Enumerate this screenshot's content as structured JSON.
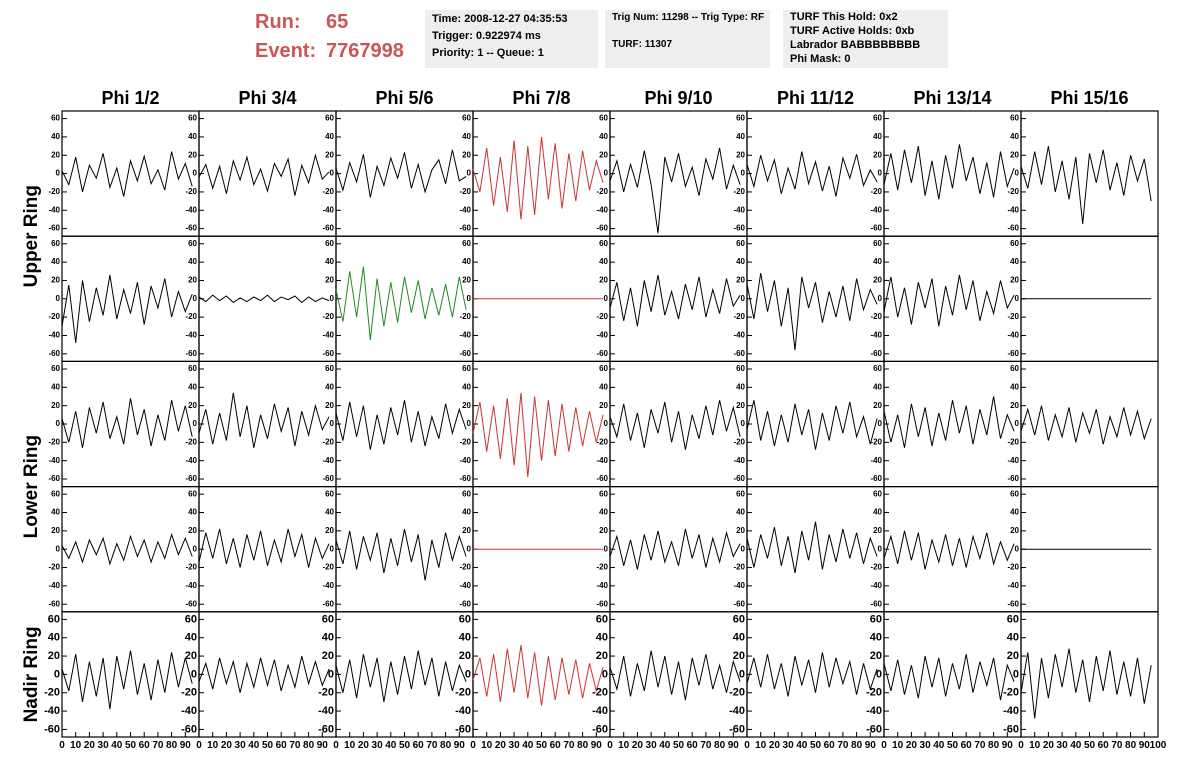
{
  "header": {
    "run_label": "Run:",
    "run": "65",
    "event_label": "Event:",
    "event": "7767998"
  },
  "info": [
    [
      "Time: 2008-12-27 04:35:53",
      "Trigger: 0.922974 ms",
      "Priority: 1 -- Queue: 1"
    ],
    [
      "Trig Num: 11298 -- Trig Type: RF",
      "TURF: 11307"
    ],
    [
      "TURF This Hold: 0x2",
      "TURF Active Holds: 0xb",
      "Labrador BABBBBBBBB",
      "Phi Mask: 0"
    ]
  ],
  "info_colors": [
    "#000000",
    "#000000",
    "#000000",
    "#000000",
    "#000000",
    "#000000",
    "#ee00ee",
    "#000000"
  ],
  "columns": [
    "Phi 1/2",
    "Phi 3/4",
    "Phi 5/6",
    "Phi 7/8",
    "Phi 9/10",
    "Phi 11/12",
    "Phi 13/14",
    "Phi 15/16"
  ],
  "ring_labels": [
    "Upper Ring",
    "Lower Ring",
    "Nadir Ring"
  ],
  "axes": {
    "ylim": [
      -65,
      65
    ],
    "yticks": [
      -60,
      -40,
      -20,
      0,
      20,
      40,
      60
    ],
    "xlim": [
      0,
      100
    ],
    "xticks": [
      0,
      10,
      20,
      30,
      40,
      50,
      60,
      70,
      80,
      90,
      100
    ],
    "x": [
      0,
      5,
      10,
      15,
      20,
      25,
      30,
      35,
      40,
      45,
      50,
      55,
      60,
      65,
      70,
      75,
      80,
      85,
      90,
      95
    ]
  },
  "panels": [
    [
      {
        "color": "#000000",
        "values": [
          3,
          -12,
          18,
          -20,
          9,
          -5,
          22,
          -15,
          6,
          -25,
          14,
          -8,
          19,
          -11,
          4,
          -18,
          24,
          -6,
          11,
          -14
        ]
      },
      {
        "color": "#000000",
        "values": [
          -4,
          10,
          -16,
          8,
          -22,
          14,
          -7,
          18,
          -12,
          5,
          -19,
          11,
          -3,
          16,
          -24,
          9,
          -10,
          20,
          -6,
          2
        ]
      },
      {
        "color": "#000000",
        "values": [
          6,
          -18,
          12,
          -9,
          21,
          -26,
          8,
          -13,
          17,
          -5,
          23,
          -16,
          10,
          -20,
          4,
          15,
          -11,
          26,
          -8,
          -3
        ]
      },
      {
        "color": "#cc3333",
        "values": [
          5,
          -20,
          28,
          -35,
          18,
          -42,
          36,
          -50,
          30,
          -45,
          40,
          -28,
          33,
          -38,
          22,
          -30,
          25,
          -18,
          14,
          -10
        ]
      },
      {
        "color": "#000000",
        "values": [
          -8,
          14,
          -20,
          10,
          -15,
          25,
          -12,
          -65,
          18,
          -9,
          22,
          -14,
          7,
          -24,
          16,
          -6,
          28,
          -17,
          9,
          -12
        ]
      },
      {
        "color": "#000000",
        "values": [
          10,
          -14,
          20,
          -8,
          15,
          -22,
          6,
          -17,
          24,
          -11,
          13,
          -19,
          8,
          -25,
          17,
          -5,
          21,
          -13,
          4,
          -9
        ]
      },
      {
        "color": "#000000",
        "values": [
          -12,
          22,
          -18,
          26,
          -10,
          30,
          -24,
          14,
          -28,
          20,
          -16,
          32,
          -8,
          18,
          -22,
          12,
          -26,
          24,
          -14,
          6
        ]
      },
      {
        "color": "#000000",
        "values": [
          8,
          -16,
          24,
          -12,
          30,
          -20,
          14,
          -28,
          18,
          -55,
          22,
          -10,
          26,
          -18,
          12,
          -24,
          20,
          -8,
          16,
          -30
        ]
      }
    ],
    [
      {
        "color": "#000000",
        "values": [
          -30,
          15,
          -48,
          20,
          -25,
          12,
          -18,
          26,
          -22,
          10,
          -16,
          18,
          -28,
          14,
          -10,
          22,
          -20,
          8,
          -14,
          5
        ]
      },
      {
        "color": "#000000",
        "values": [
          2,
          -3,
          4,
          -2,
          3,
          -4,
          1,
          -3,
          2,
          -2,
          4,
          -3,
          2,
          -1,
          3,
          -4,
          2,
          -3,
          1,
          -2
        ]
      },
      {
        "color": "#228822",
        "values": [
          10,
          -25,
          30,
          -20,
          35,
          -45,
          22,
          -30,
          18,
          -26,
          24,
          -15,
          20,
          -22,
          12,
          -18,
          16,
          -20,
          24,
          -12
        ]
      },
      {
        "color": "#cc3333",
        "values": [
          0,
          0,
          0,
          0,
          0,
          0,
          0,
          0,
          0,
          0,
          0,
          0,
          0,
          0,
          0,
          0,
          0,
          0,
          0,
          0
        ]
      },
      {
        "color": "#000000",
        "values": [
          -10,
          18,
          -24,
          12,
          -30,
          20,
          -14,
          26,
          -18,
          8,
          -22,
          16,
          -12,
          24,
          -20,
          10,
          -16,
          22,
          -8,
          4
        ]
      },
      {
        "color": "#000000",
        "values": [
          16,
          -22,
          28,
          -14,
          20,
          -30,
          12,
          -56,
          24,
          -10,
          18,
          -26,
          8,
          -20,
          14,
          -24,
          22,
          -12,
          10,
          -6
        ]
      },
      {
        "color": "#000000",
        "values": [
          -14,
          24,
          -20,
          12,
          -28,
          18,
          -10,
          22,
          -30,
          14,
          -18,
          26,
          -12,
          20,
          -24,
          8,
          -16,
          20,
          -10,
          4
        ]
      },
      {
        "color": "#000000",
        "values": [
          0,
          0,
          0,
          0,
          0,
          0,
          0,
          0,
          0,
          0,
          0,
          0,
          0,
          0,
          0,
          0,
          0,
          0,
          0,
          0
        ]
      }
    ],
    [
      {
        "color": "#000000",
        "values": [
          6,
          -20,
          14,
          -26,
          18,
          -10,
          24,
          -16,
          8,
          -22,
          28,
          -12,
          16,
          -24,
          10,
          -18,
          26,
          -8,
          20,
          -14
        ]
      },
      {
        "color": "#000000",
        "values": [
          -10,
          16,
          -22,
          12,
          -18,
          34,
          -14,
          20,
          -26,
          10,
          -16,
          22,
          -8,
          18,
          -24,
          14,
          -12,
          20,
          -6,
          8
        ]
      },
      {
        "color": "#000000",
        "values": [
          12,
          -18,
          24,
          -14,
          20,
          -28,
          10,
          -22,
          18,
          -12,
          26,
          -20,
          14,
          -24,
          8,
          -16,
          22,
          -10,
          16,
          -6
        ]
      },
      {
        "color": "#cc3333",
        "values": [
          -10,
          24,
          -30,
          20,
          -38,
          28,
          -45,
          34,
          -58,
          30,
          -40,
          26,
          -35,
          22,
          -30,
          18,
          -24,
          14,
          -20,
          10
        ]
      },
      {
        "color": "#000000",
        "values": [
          8,
          -14,
          22,
          -18,
          12,
          -26,
          16,
          -10,
          24,
          -20,
          14,
          -28,
          10,
          -16,
          20,
          -12,
          26,
          -8,
          18,
          -14
        ]
      },
      {
        "color": "#000000",
        "values": [
          -6,
          26,
          -18,
          14,
          -24,
          10,
          -20,
          22,
          -12,
          16,
          -28,
          12,
          -18,
          20,
          -10,
          24,
          -14,
          8,
          -22,
          6
        ]
      },
      {
        "color": "#000000",
        "values": [
          14,
          -20,
          10,
          -26,
          22,
          -14,
          18,
          -24,
          12,
          -18,
          26,
          -10,
          20,
          -22,
          16,
          -12,
          30,
          -16,
          10,
          -8
        ]
      },
      {
        "color": "#000000",
        "values": [
          -8,
          16,
          -12,
          20,
          -18,
          10,
          -14,
          18,
          -20,
          12,
          -10,
          16,
          -22,
          8,
          -14,
          18,
          -12,
          14,
          -16,
          6
        ]
      }
    ],
    [
      {
        "color": "#000000",
        "values": [
          4,
          -10,
          8,
          -14,
          10,
          -6,
          12,
          -16,
          6,
          -12,
          14,
          -8,
          10,
          -14,
          8,
          -10,
          16,
          -6,
          12,
          -8
        ]
      },
      {
        "color": "#000000",
        "values": [
          -14,
          18,
          -10,
          22,
          -16,
          12,
          -20,
          16,
          -12,
          20,
          -18,
          10,
          -14,
          22,
          -8,
          16,
          -20,
          12,
          -10,
          6
        ]
      },
      {
        "color": "#000000",
        "values": [
          10,
          -16,
          20,
          -22,
          14,
          -12,
          18,
          -26,
          12,
          -18,
          22,
          -14,
          16,
          -34,
          10,
          -20,
          18,
          -12,
          14,
          -8
        ]
      },
      {
        "color": "#cc3333",
        "values": [
          0,
          0,
          0,
          0,
          0,
          0,
          0,
          0,
          0,
          0,
          0,
          0,
          0,
          0,
          0,
          0,
          0,
          0,
          0,
          0
        ]
      },
      {
        "color": "#000000",
        "values": [
          -8,
          14,
          -18,
          10,
          -22,
          16,
          -12,
          20,
          -14,
          8,
          -18,
          22,
          -10,
          16,
          -20,
          12,
          -14,
          18,
          -8,
          6
        ]
      },
      {
        "color": "#000000",
        "values": [
          12,
          -20,
          16,
          -10,
          24,
          -18,
          14,
          -26,
          20,
          -12,
          30,
          -22,
          16,
          -14,
          22,
          -10,
          18,
          -16,
          12,
          -8
        ]
      },
      {
        "color": "#000000",
        "values": [
          -10,
          14,
          -16,
          20,
          -12,
          18,
          -22,
          10,
          -14,
          16,
          -18,
          12,
          -20,
          14,
          -10,
          18,
          -16,
          8,
          -12,
          6
        ]
      },
      {
        "color": "#000000",
        "values": [
          0,
          0,
          0,
          0,
          0,
          0,
          0,
          0,
          0,
          0,
          0,
          0,
          0,
          0,
          0,
          0,
          0,
          0,
          0,
          0
        ]
      }
    ],
    [
      {
        "color": "#000000",
        "values": [
          6,
          -18,
          22,
          -30,
          14,
          -24,
          18,
          -38,
          20,
          -16,
          26,
          -22,
          12,
          -28,
          16,
          -20,
          24,
          -14,
          18,
          -10
        ]
      },
      {
        "color": "#000000",
        "values": [
          -8,
          12,
          -16,
          18,
          -10,
          14,
          -20,
          12,
          -14,
          18,
          -12,
          16,
          -18,
          10,
          -14,
          20,
          -10,
          14,
          -12,
          6
        ]
      },
      {
        "color": "#000000",
        "values": [
          10,
          -20,
          16,
          -26,
          22,
          -14,
          18,
          -30,
          14,
          -22,
          20,
          -16,
          26,
          -12,
          18,
          -24,
          14,
          -18,
          10,
          -8
        ]
      },
      {
        "color": "#cc3333",
        "values": [
          -6,
          18,
          -24,
          22,
          -30,
          28,
          -20,
          32,
          -26,
          24,
          -34,
          20,
          -28,
          18,
          -22,
          16,
          -26,
          12,
          -18,
          8
        ]
      },
      {
        "color": "#000000",
        "values": [
          8,
          -16,
          20,
          -24,
          12,
          -18,
          26,
          -14,
          20,
          -22,
          14,
          -28,
          18,
          -12,
          22,
          -16,
          10,
          -20,
          14,
          -8
        ]
      },
      {
        "color": "#000000",
        "values": [
          -10,
          18,
          -14,
          22,
          -16,
          12,
          -24,
          20,
          -12,
          16,
          -20,
          24,
          -14,
          18,
          -10,
          14,
          -22,
          12,
          -16,
          6
        ]
      },
      {
        "color": "#000000",
        "values": [
          12,
          -18,
          16,
          -22,
          10,
          -26,
          20,
          -14,
          18,
          -24,
          12,
          -16,
          22,
          -20,
          14,
          -12,
          18,
          -28,
          10,
          -8
        ]
      },
      {
        "color": "#000000",
        "values": [
          -20,
          24,
          -48,
          18,
          -26,
          22,
          -14,
          28,
          -20,
          16,
          -30,
          20,
          -18,
          26,
          -22,
          14,
          -24,
          18,
          -32,
          10
        ]
      }
    ]
  ]
}
